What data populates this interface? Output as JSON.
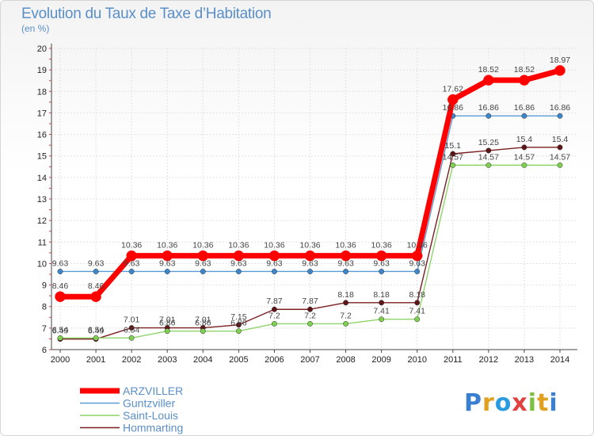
{
  "chart_data": {
    "type": "line",
    "title": "Evolution du Taux de Taxe d’Habitation",
    "subtitle": "(en %)",
    "x": [
      "2000",
      "2001",
      "2002",
      "2003",
      "2004",
      "2005",
      "2006",
      "2007",
      "2008",
      "2009",
      "2010",
      "2011",
      "2012",
      "2013",
      "2014"
    ],
    "ylim": [
      6,
      20
    ],
    "yticks": [
      6,
      7,
      8,
      9,
      10,
      11,
      12,
      13,
      14,
      15,
      16,
      17,
      18,
      19,
      20
    ],
    "grid": true,
    "legend_position": "bottom-left",
    "series": [
      {
        "name": "Hommarting",
        "color": "#7a1f22",
        "width": 1.4,
        "dot": "#5e1518",
        "labels": "above",
        "values": [
          6.49,
          6.49,
          7.01,
          7.01,
          7.01,
          7.15,
          7.87,
          7.87,
          8.18,
          8.18,
          8.18,
          15.1,
          15.25,
          15.4,
          15.4
        ]
      },
      {
        "name": "Saint-Louis",
        "color": "#8ed46a",
        "width": 1.4,
        "dot": "#7fcf52",
        "labels": "above",
        "values": [
          6.54,
          6.54,
          6.54,
          6.86,
          6.86,
          6.86,
          7.2,
          7.2,
          7.2,
          7.41,
          7.41,
          14.57,
          14.57,
          14.57,
          14.57
        ]
      },
      {
        "name": "Guntzviller",
        "color": "#5b9bd5",
        "width": 1.4,
        "dot": "#3d86cc",
        "labels": "above",
        "values": [
          9.63,
          9.63,
          9.63,
          9.63,
          9.63,
          9.63,
          9.63,
          9.63,
          9.63,
          9.63,
          9.63,
          16.86,
          16.86,
          16.86,
          16.86
        ]
      },
      {
        "name": "ARZVILLER",
        "color": "#ff0000",
        "width": 7,
        "dot": "#ff0000",
        "labels": "above",
        "values": [
          8.46,
          8.46,
          10.36,
          10.36,
          10.36,
          10.36,
          10.36,
          10.36,
          10.36,
          10.36,
          10.36,
          17.62,
          18.52,
          18.52,
          18.97
        ]
      }
    ],
    "legend_order": [
      "ARZVILLER",
      "Guntzviller",
      "Saint-Louis",
      "Hommarting"
    ]
  },
  "logo": {
    "letters": [
      "P",
      "r",
      "o",
      "x",
      "i",
      "t",
      "i"
    ],
    "colors": [
      "#3a7fd0",
      "#e0a020",
      "#2b9be0",
      "#e04040",
      "#7cc040",
      "#e0a020",
      "#3a7fd0"
    ]
  }
}
